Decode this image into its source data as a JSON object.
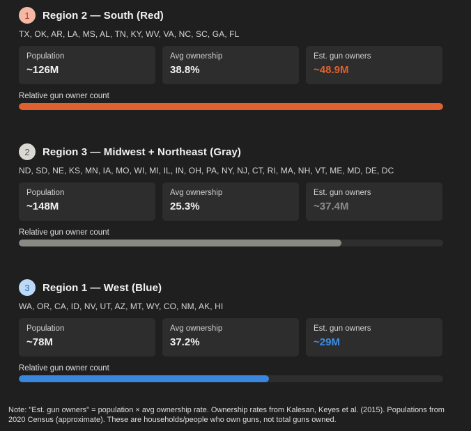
{
  "regions": [
    {
      "badge": "1",
      "title": "Region 2 — South (Red)",
      "states": "TX, OK, AR, LA, MS, AL, TN, KY, WV, VA, NC, SC, GA, FL",
      "population_label": "Population",
      "population": "~126M",
      "ownership_label": "Avg ownership",
      "ownership": "38.8%",
      "owners_label": "Est. gun owners",
      "owners": "~48.9M",
      "bar_label": "Relative gun owner count",
      "bar_fraction": 1.0,
      "badge_bg": "#f4b9a6",
      "badge_fg": "#b43e17",
      "accent": "#e0602f",
      "owners_color": "#e0602f"
    },
    {
      "badge": "2",
      "title": "Region 3 — Midwest + Northeast (Gray)",
      "states": "ND, SD, NE, KS, MN, IA, MO, WI, MI, IL, IN, OH, PA, NY, NJ, CT, RI, MA, NH, VT, ME, MD, DE, DC",
      "population_label": "Population",
      "population": "~148M",
      "ownership_label": "Avg ownership",
      "ownership": "25.3%",
      "owners_label": "Est. gun owners",
      "owners": "~37.4M",
      "bar_label": "Relative gun owner count",
      "bar_fraction": 0.76,
      "badge_bg": "#d9d8d2",
      "badge_fg": "#555550",
      "accent": "#8a8a84",
      "owners_color": "#8c8c8c"
    },
    {
      "badge": "3",
      "title": "Region 1 — West (Blue)",
      "states": "WA, OR, CA, ID, NV, UT, AZ, MT, WY, CO, NM, AK, HI",
      "population_label": "Population",
      "population": "~78M",
      "ownership_label": "Avg ownership",
      "ownership": "37.2%",
      "owners_label": "Est. gun owners",
      "owners": "~29M",
      "bar_label": "Relative gun owner count",
      "bar_fraction": 0.59,
      "badge_bg": "#bcd9f5",
      "badge_fg": "#2f6fb4",
      "accent": "#3986de",
      "owners_color": "#3d8de3"
    }
  ],
  "note": "Note: \"Est. gun owners\" = population × avg ownership rate. Ownership rates from Kalesan, Keyes et al. (2015). Populations from 2020 Census (approximate). These are households/people who own guns, not total guns owned."
}
